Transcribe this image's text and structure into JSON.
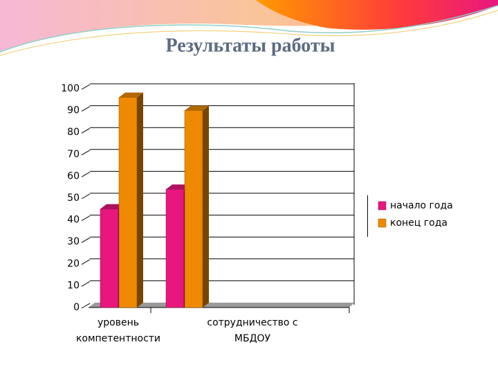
{
  "chart_data": {
    "type": "bar3d",
    "title": "Результаты работы",
    "categories": [
      "уровень компетентности",
      "сотрудничество с МБДОУ"
    ],
    "series": [
      {
        "name": "начало года",
        "color": "#e8177f",
        "values": [
          45,
          54
        ]
      },
      {
        "name": "конец года",
        "color": "#ef8a00",
        "values": [
          96,
          90
        ]
      }
    ],
    "ylim": [
      0,
      100
    ],
    "yticks": [
      0,
      10,
      20,
      30,
      40,
      50,
      60,
      70,
      80,
      90,
      100
    ],
    "grid": true,
    "legend": "right"
  }
}
